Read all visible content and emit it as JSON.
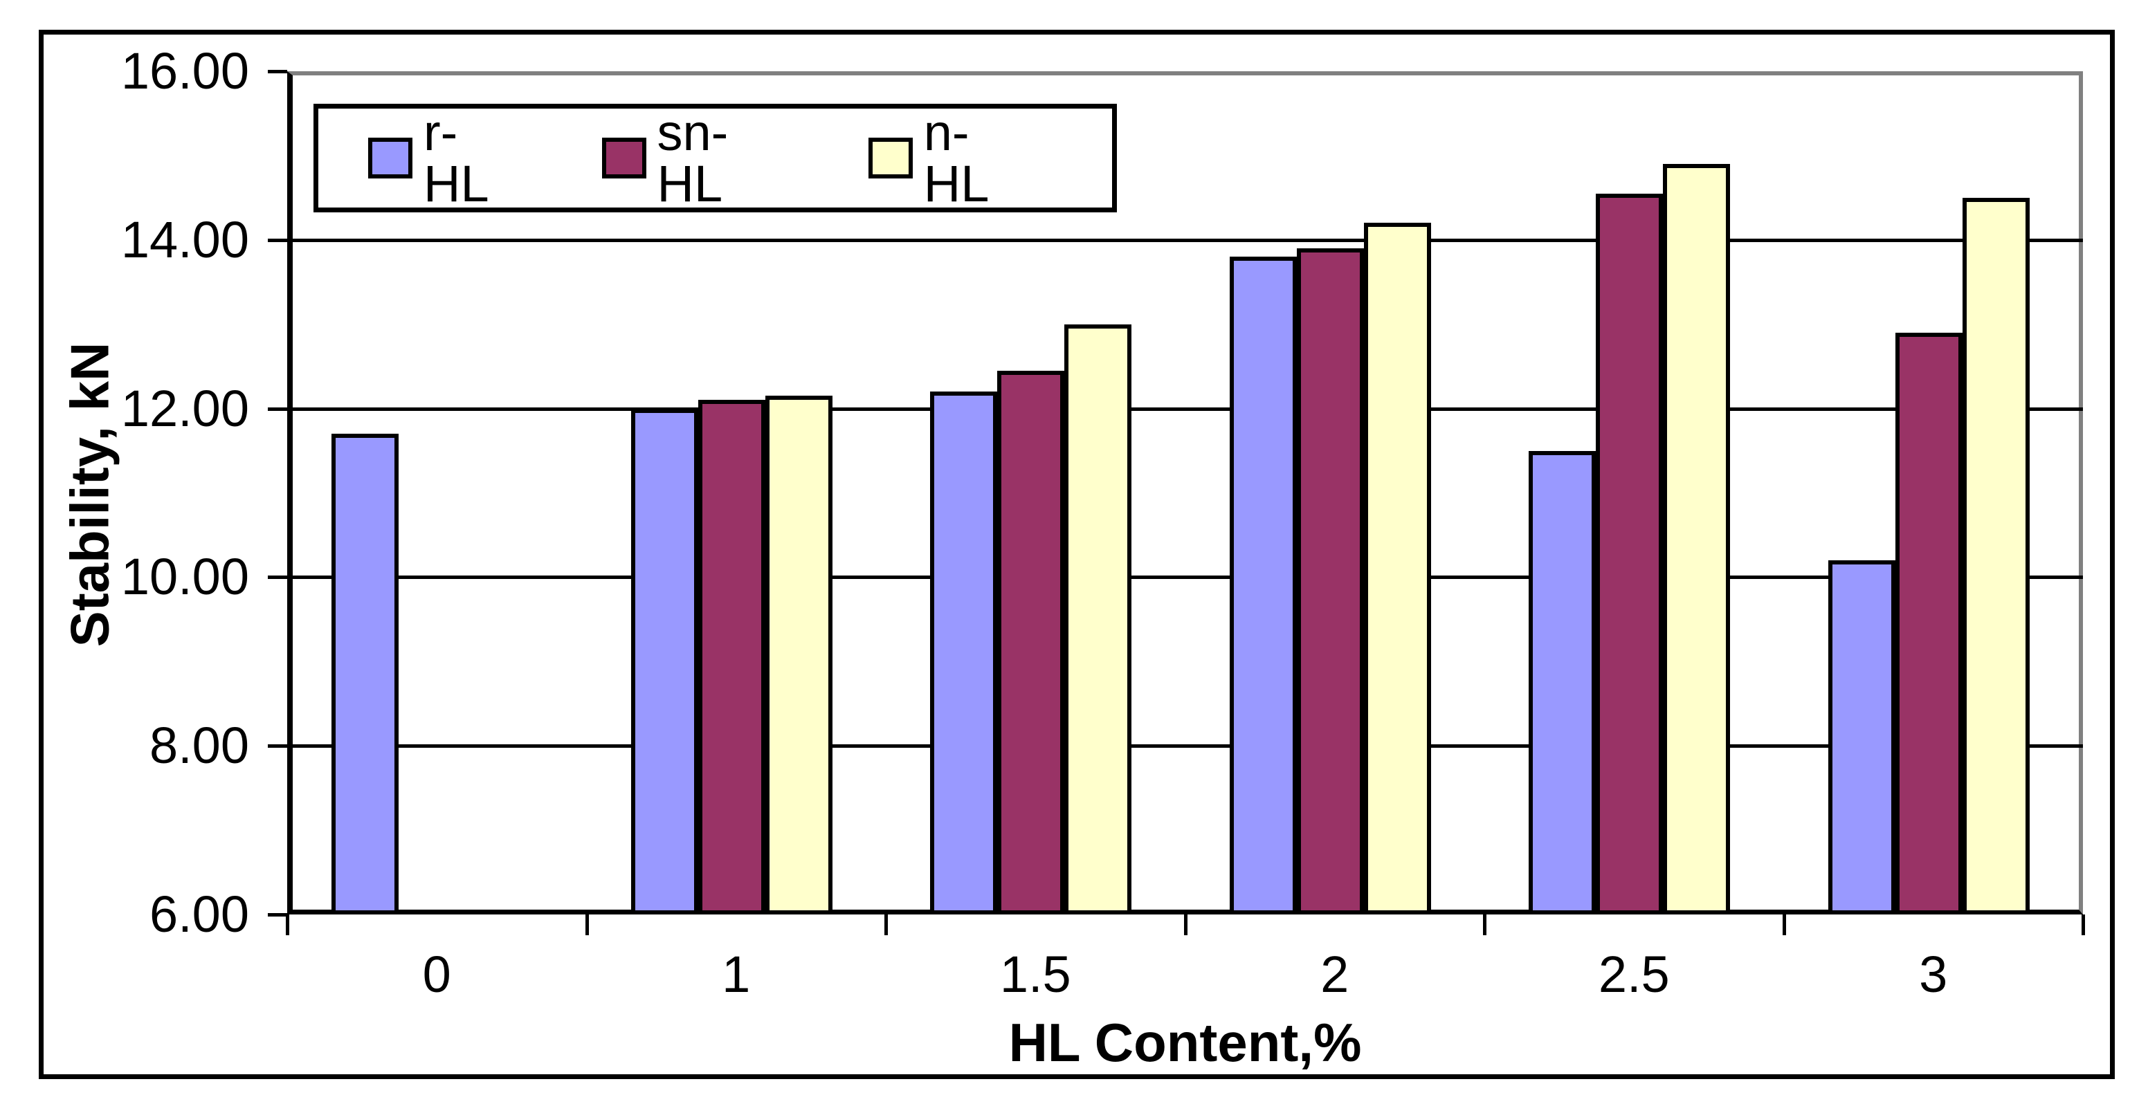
{
  "chart_data": {
    "type": "bar",
    "title": "",
    "xlabel": "HL Content,%",
    "ylabel": "Stability, kN",
    "categories": [
      "0",
      "1",
      "1.5",
      "2",
      "2.5",
      "3"
    ],
    "series": [
      {
        "name": "r-HL",
        "color": "#9999FF",
        "values": [
          11.7,
          12.0,
          12.2,
          13.8,
          11.5,
          10.2
        ]
      },
      {
        "name": "sn-HL",
        "color": "#993366",
        "values": [
          null,
          12.1,
          12.45,
          13.9,
          14.55,
          12.9
        ]
      },
      {
        "name": "n-HL",
        "color": "#FFFFCC",
        "values": [
          null,
          12.15,
          13.0,
          14.2,
          14.9,
          14.5
        ]
      }
    ],
    "y_axis": {
      "min": 6,
      "max": 16,
      "step": 2,
      "tick_labels": [
        "6.00",
        "8.00",
        "10.00",
        "12.00",
        "14.00",
        "16.00"
      ]
    },
    "x_axis": {
      "tick_labels": [
        "0",
        "1",
        "1.5",
        "2",
        "2.5",
        "3"
      ]
    },
    "legend": {
      "entries": [
        "r-HL",
        "sn-HL",
        "n-HL"
      ],
      "position": "top-left-inside"
    },
    "grid": true,
    "ylim": [
      6,
      16
    ]
  },
  "colors": {
    "background": "#FFFFFF",
    "bar_border": "#000000",
    "grid_color": "#000000",
    "plot_border": "#808080"
  }
}
